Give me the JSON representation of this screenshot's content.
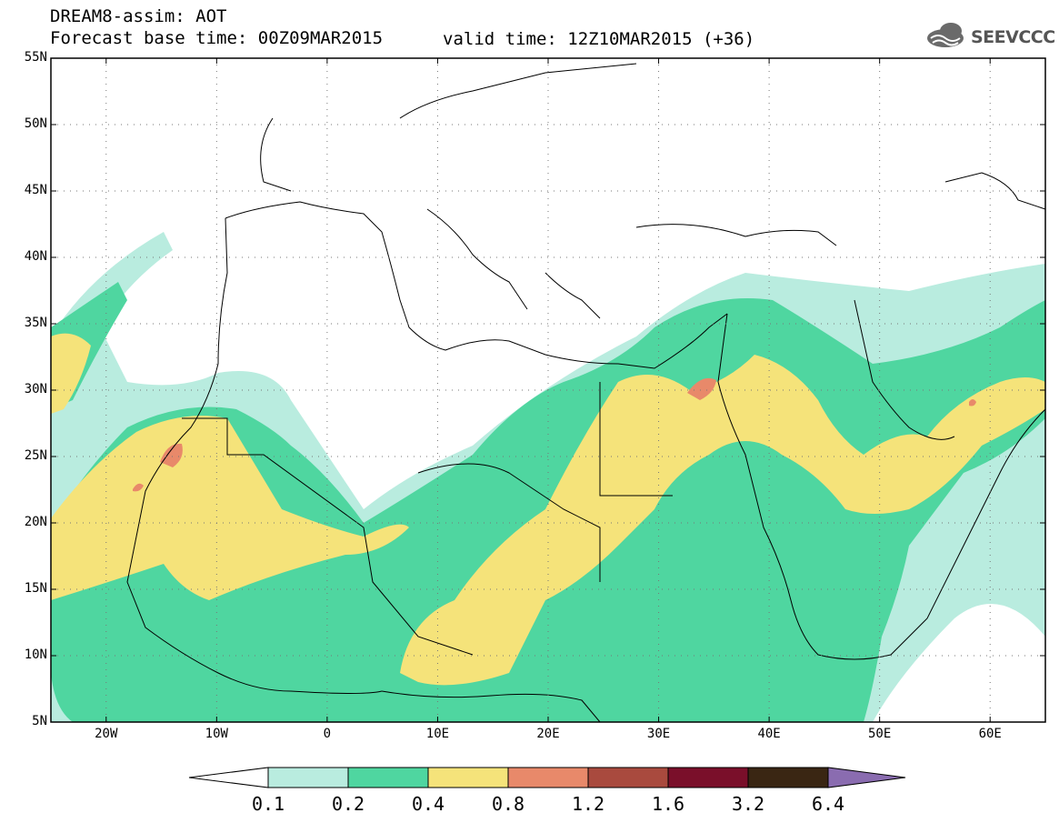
{
  "header": {
    "title": "DREAM8-assim: AOT",
    "base_time": "Forecast base time: 00Z09MAR2015",
    "valid_time": "valid time: 12Z10MAR2015 (+36)"
  },
  "logo": {
    "text": "SEEVCCC",
    "icon": "cloud-logo-icon"
  },
  "map": {
    "lon_range": [
      -25,
      65
    ],
    "lat_range": [
      5,
      55
    ],
    "lat_labels": [
      "55N",
      "50N",
      "45N",
      "40N",
      "35N",
      "30N",
      "25N",
      "20N",
      "15N",
      "10N",
      "5N"
    ],
    "lat_values": [
      55,
      50,
      45,
      40,
      35,
      30,
      25,
      20,
      15,
      10,
      5
    ],
    "lon_labels": [
      "20W",
      "10W",
      "0",
      "10E",
      "20E",
      "30E",
      "40E",
      "50E",
      "60E"
    ],
    "lon_values": [
      -20,
      -10,
      0,
      10,
      20,
      30,
      40,
      50,
      60
    ],
    "gridlines": "dotted"
  },
  "colorbar": {
    "levels": [
      "0.1",
      "0.2",
      "0.4",
      "0.8",
      "1.2",
      "1.6",
      "3.2",
      "6.4"
    ],
    "colors": [
      "#ffffff",
      "#b9ecdf",
      "#4fd6a0",
      "#f5e37a",
      "#e8896a",
      "#a94a3e",
      "#7a0f2a",
      "#3a2613",
      "#8a6cb0"
    ]
  }
}
